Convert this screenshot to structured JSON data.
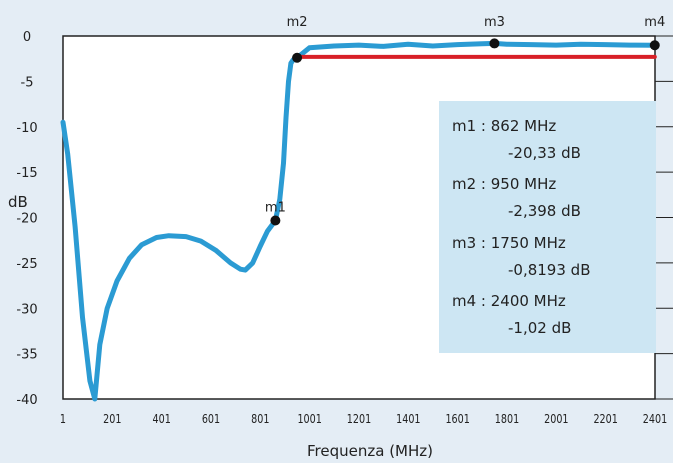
{
  "chart_data": {
    "type": "line",
    "xlabel": "Frequenza (MHz)",
    "ylabel": "dB",
    "xlim": [
      1,
      2401
    ],
    "ylim": [
      -40,
      0
    ],
    "x_ticks": [
      "1",
      "201",
      "401",
      "601",
      "801",
      "1001",
      "1201",
      "1401",
      "1601",
      "1801",
      "2001",
      "2201",
      "2401"
    ],
    "y_ticks": [
      "0",
      "-5",
      "-10",
      "-15",
      "-20",
      "-25",
      "-30",
      "-35",
      "-40"
    ],
    "grid": false,
    "series": [
      {
        "color": "#2b9bd3",
        "x": [
          1,
          20,
          50,
          80,
          110,
          130,
          150,
          180,
          220,
          270,
          320,
          380,
          430,
          500,
          560,
          620,
          680,
          720,
          740,
          770,
          800,
          830,
          862,
          880,
          895,
          905,
          915,
          925,
          935,
          950,
          1000,
          1100,
          1200,
          1300,
          1400,
          1500,
          1600,
          1700,
          1750,
          1800,
          1900,
          2000,
          2100,
          2200,
          2300,
          2400
        ],
        "values": [
          -9.5,
          -13,
          -21,
          -31,
          -38,
          -40,
          -34,
          -30,
          -27,
          -24.5,
          -23,
          -22.2,
          -22,
          -22.1,
          -22.6,
          -23.6,
          -25,
          -25.7,
          -25.8,
          -25,
          -23.2,
          -21.5,
          -20.33,
          -18,
          -14,
          -9,
          -5,
          -3,
          -2.6,
          -2.398,
          -1.3,
          -1.1,
          -1.0,
          -1.15,
          -0.9,
          -1.1,
          -0.95,
          -0.85,
          -0.8193,
          -0.9,
          -0.95,
          -1.0,
          -0.9,
          -0.95,
          -1.0,
          -1.02
        ]
      },
      {
        "color": "#d82027",
        "x": [
          950,
          2400
        ],
        "values": [
          -2.3,
          -2.3
        ]
      }
    ],
    "markers": [
      {
        "name": "m1",
        "x": 862,
        "y": -20.33
      },
      {
        "name": "m2",
        "x": 950,
        "y": -2.398
      },
      {
        "name": "m3",
        "x": 1750,
        "y": -0.8193
      },
      {
        "name": "m4",
        "x": 2400,
        "y": -1.02
      }
    ],
    "marker_box": {
      "background": "#cde6f3",
      "lines": [
        "m1 : 862 MHz",
        "-20,33 dB",
        "m2 : 950 MHz",
        "-2,398 dB",
        "m3 : 1750 MHz",
        "-0,8193 dB",
        "m4 : 2400 MHz",
        "-1,02 dB"
      ]
    }
  }
}
